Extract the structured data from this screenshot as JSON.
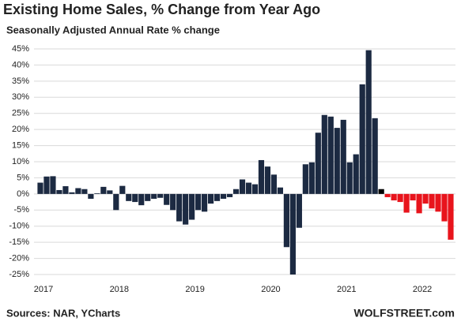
{
  "chart_data": {
    "type": "bar",
    "title": "Existing Home Sales, % Change from Year Ago",
    "subtitle": "Seasonally Adjusted Annual Rate % change",
    "source": "Sources: NAR, YCharts",
    "watermark": "WOLFSTREET.com",
    "categories": [
      "2017",
      null,
      null,
      null,
      null,
      null,
      null,
      null,
      null,
      null,
      null,
      null,
      "2018",
      null,
      null,
      null,
      null,
      null,
      null,
      null,
      null,
      null,
      null,
      null,
      "2019",
      null,
      null,
      null,
      null,
      null,
      null,
      null,
      null,
      null,
      null,
      null,
      "2020",
      null,
      null,
      null,
      null,
      null,
      null,
      null,
      null,
      null,
      null,
      null,
      "2021",
      null,
      null,
      null,
      null,
      null,
      null,
      null,
      null,
      null,
      null,
      null,
      "2022",
      null,
      null,
      null,
      null,
      null
    ],
    "values": [
      3.5,
      5.4,
      5.5,
      1.2,
      2.4,
      0.5,
      1.8,
      1.5,
      -1.5,
      0.2,
      2.2,
      1.1,
      -5,
      2.5,
      -2.2,
      -2.5,
      -3.5,
      -2.2,
      -1.5,
      -1.2,
      -3.4,
      -5,
      -8.5,
      -9.5,
      -8,
      -5,
      -5.5,
      -3,
      -2.2,
      -1.5,
      -1,
      1.5,
      4.5,
      3.5,
      3,
      10.5,
      8.5,
      6,
      2,
      -16.5,
      -25,
      -10.5,
      9.2,
      9.8,
      19,
      24.5,
      24,
      20.5,
      23,
      9.8,
      12.3,
      34,
      44.6,
      23.5,
      1.5,
      -1,
      -2,
      -2.5,
      -5.8,
      -2,
      -6,
      -3,
      -4.5,
      -5.5,
      -8.5,
      -14.2
    ],
    "colors": [
      "#1c2a42",
      "#1c2a42",
      "#1c2a42",
      "#1c2a42",
      "#1c2a42",
      "#1c2a42",
      "#1c2a42",
      "#1c2a42",
      "#1c2a42",
      "#1c2a42",
      "#1c2a42",
      "#1c2a42",
      "#1c2a42",
      "#1c2a42",
      "#1c2a42",
      "#1c2a42",
      "#1c2a42",
      "#1c2a42",
      "#1c2a42",
      "#1c2a42",
      "#1c2a42",
      "#1c2a42",
      "#1c2a42",
      "#1c2a42",
      "#1c2a42",
      "#1c2a42",
      "#1c2a42",
      "#1c2a42",
      "#1c2a42",
      "#1c2a42",
      "#1c2a42",
      "#1c2a42",
      "#1c2a42",
      "#1c2a42",
      "#1c2a42",
      "#1c2a42",
      "#1c2a42",
      "#1c2a42",
      "#1c2a42",
      "#1c2a42",
      "#1c2a42",
      "#1c2a42",
      "#1c2a42",
      "#1c2a42",
      "#1c2a42",
      "#1c2a42",
      "#1c2a42",
      "#1c2a42",
      "#1c2a42",
      "#1c2a42",
      "#1c2a42",
      "#1c2a42",
      "#1c2a42",
      "#1c2a42",
      "#000000",
      "#e8141c",
      "#e8141c",
      "#e8141c",
      "#e8141c",
      "#e8141c",
      "#e8141c",
      "#e8141c",
      "#e8141c",
      "#e8141c",
      "#e8141c",
      "#e8141c"
    ],
    "ylim": [
      -25,
      45
    ],
    "yticks": [
      {
        "value": -25,
        "label": "-25%"
      },
      {
        "value": -20,
        "label": "-20%"
      },
      {
        "value": -15,
        "label": "-15%"
      },
      {
        "value": -10,
        "label": "-10%"
      },
      {
        "value": -5,
        "label": "-5%"
      },
      {
        "value": 0,
        "label": "0%"
      },
      {
        "value": 5,
        "label": "5%"
      },
      {
        "value": 10,
        "label": "10%"
      },
      {
        "value": 15,
        "label": "15%"
      },
      {
        "value": 20,
        "label": "20%"
      },
      {
        "value": 25,
        "label": "25%"
      },
      {
        "value": 30,
        "label": "30%"
      },
      {
        "value": 35,
        "label": "35%"
      },
      {
        "value": 40,
        "label": "40%"
      },
      {
        "value": 45,
        "label": "45%"
      }
    ],
    "grid": true
  }
}
